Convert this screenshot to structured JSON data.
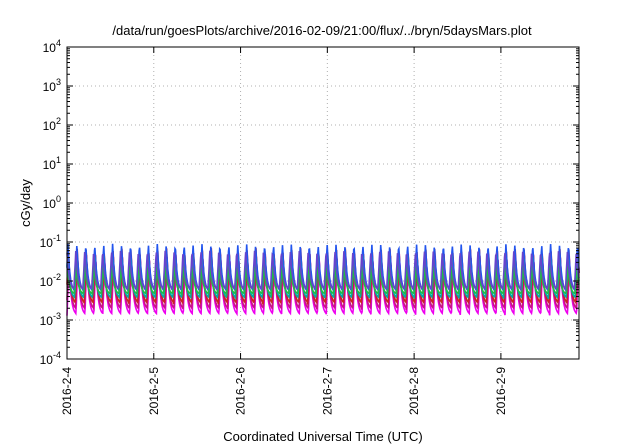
{
  "chart_data": {
    "type": "line",
    "title": "/data/run/goesPlots/archive/2016-02-09/21:00/flux/../bryn/5daysMars.plot",
    "xlabel": "Coordinated Universal Time (UTC)",
    "ylabel": "cGy/day",
    "y_scale": "log",
    "ylim": [
      0.0001,
      10000
    ],
    "xlim": [
      0,
      5.9
    ],
    "x_tick_labels": [
      "2016-2-4",
      "2016-2-5",
      "2016-2-6",
      "2016-2-7",
      "2016-2-8",
      "2016-2-9"
    ],
    "x_tick_values": [
      0,
      1,
      2,
      3,
      4,
      5
    ],
    "y_tick_labels": [
      {
        "base": "10",
        "exp": "4"
      },
      {
        "base": "10",
        "exp": "3"
      },
      {
        "base": "10",
        "exp": "2"
      },
      {
        "base": "10",
        "exp": "1"
      },
      {
        "base": "10",
        "exp": "0"
      },
      {
        "base": "10",
        "exp": "-1"
      },
      {
        "base": "10",
        "exp": "-2"
      },
      {
        "base": "10",
        "exp": "-3"
      },
      {
        "base": "10",
        "exp": "-4"
      }
    ],
    "y_tick_values": [
      4,
      3,
      2,
      1,
      0,
      -1,
      -2,
      -3,
      -4
    ],
    "grid": true,
    "legend": "none",
    "period_days": 0.103,
    "series": [
      {
        "color": "#ee00ee",
        "peak": 0.035,
        "trough": 0.0013
      },
      {
        "color": "#c71585",
        "peak": 0.05,
        "trough": 0.0018
      },
      {
        "color": "#cc2222",
        "peak": 0.07,
        "trough": 0.0025
      },
      {
        "color": "#2255ee",
        "peak": 0.09,
        "trough": 0.005
      },
      {
        "color": "#00aaaa",
        "peak": 0.045,
        "trough": 0.0035
      },
      {
        "color": "#22bb44",
        "peak": 0.025,
        "trough": 0.0045
      },
      {
        "color": "#6644cc",
        "peak": 0.06,
        "trough": 0.006
      }
    ]
  }
}
